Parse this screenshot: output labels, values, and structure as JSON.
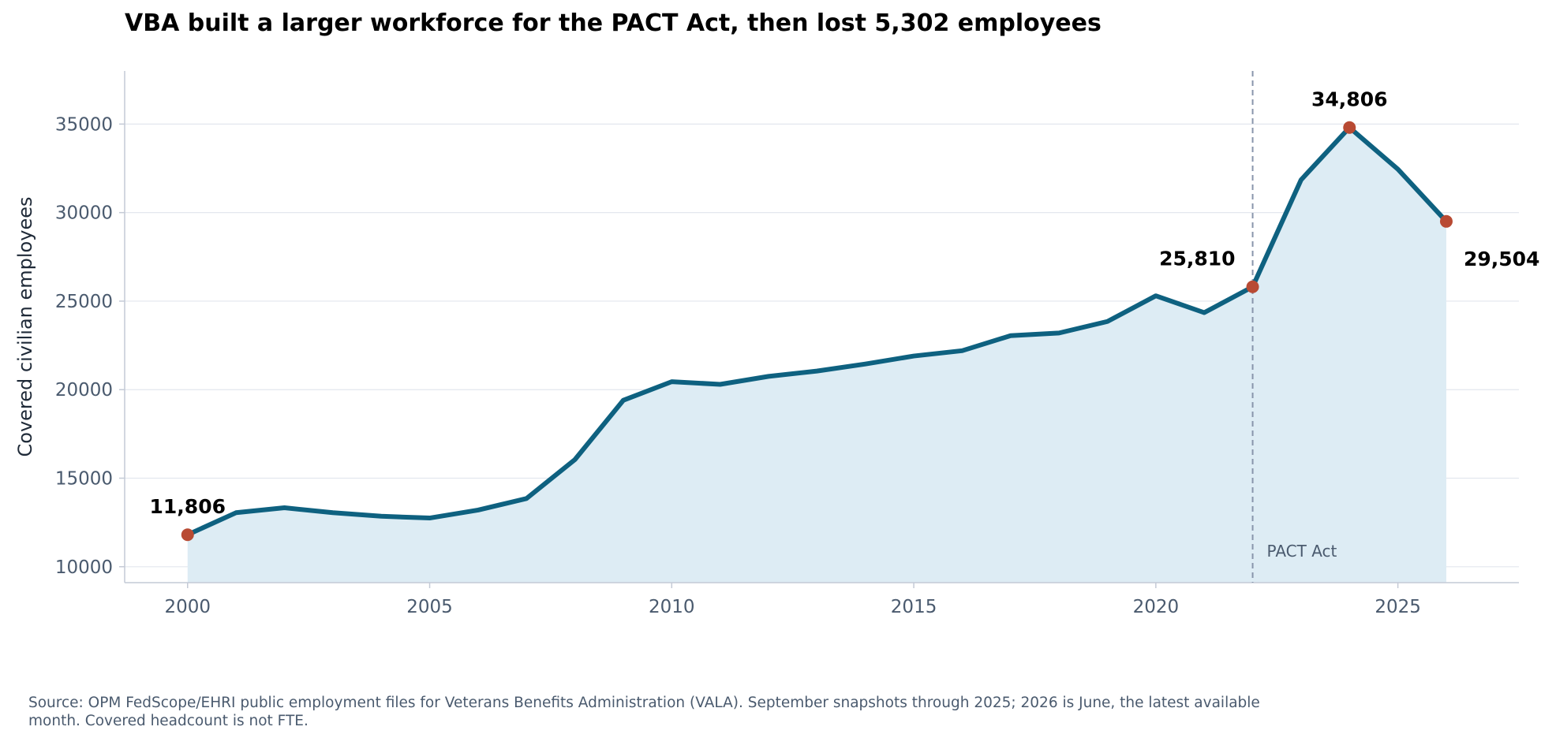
{
  "chart_data": {
    "type": "line",
    "title": "VBA built a larger workforce for the PACT Act, then lost 5,302 employees",
    "xlabel": "",
    "ylabel": "Covered civilian employees",
    "xlim": [
      1998.7,
      2027.5
    ],
    "ylim": [
      9100,
      38000
    ],
    "xticks": [
      2000,
      2005,
      2010,
      2015,
      2020,
      2025
    ],
    "yticks": [
      10000,
      15000,
      20000,
      25000,
      30000,
      35000
    ],
    "grid": "horizontal",
    "series": [
      {
        "x": [
          2000,
          2001,
          2002,
          2003,
          2004,
          2005,
          2006,
          2007,
          2008,
          2009,
          2010,
          2011,
          2012,
          2013,
          2014,
          2015,
          2016,
          2017,
          2018,
          2019,
          2020,
          2021,
          2022,
          2023,
          2024,
          2025,
          2026
        ],
        "y": [
          11806,
          13050,
          13330,
          13050,
          12850,
          12750,
          13200,
          13850,
          16050,
          19400,
          20450,
          20300,
          20750,
          21050,
          21450,
          21900,
          22200,
          23050,
          23200,
          23850,
          25300,
          24350,
          25810,
          31850,
          34806,
          32450,
          29504
        ]
      }
    ],
    "highlights": [
      {
        "x": 2000,
        "y": 11806,
        "label": "11,806",
        "anchor": "above"
      },
      {
        "x": 2022,
        "y": 25810,
        "label": "25,810",
        "anchor": "above-left"
      },
      {
        "x": 2024,
        "y": 34806,
        "label": "34,806",
        "anchor": "above"
      },
      {
        "x": 2026,
        "y": 29504,
        "label": "29,504",
        "anchor": "below-right"
      }
    ],
    "annotations": [
      {
        "x": 2022,
        "label": "PACT Act",
        "style": "dashed-vertical-line"
      }
    ],
    "colors": {
      "line": "#0e6180",
      "fill": "#ddecf4",
      "marker": "#b84a33",
      "grid": "#e3e7ee",
      "axis": "#c4cad6",
      "tick_text": "#4a5a6e",
      "event_line": "#8895ab"
    },
    "source": "Source: OPM FedScope/EHRI public employment files for Veterans Benefits Administration (VALA). September snapshots through 2025; 2026 is June, the latest available month. Covered headcount is not FTE."
  }
}
